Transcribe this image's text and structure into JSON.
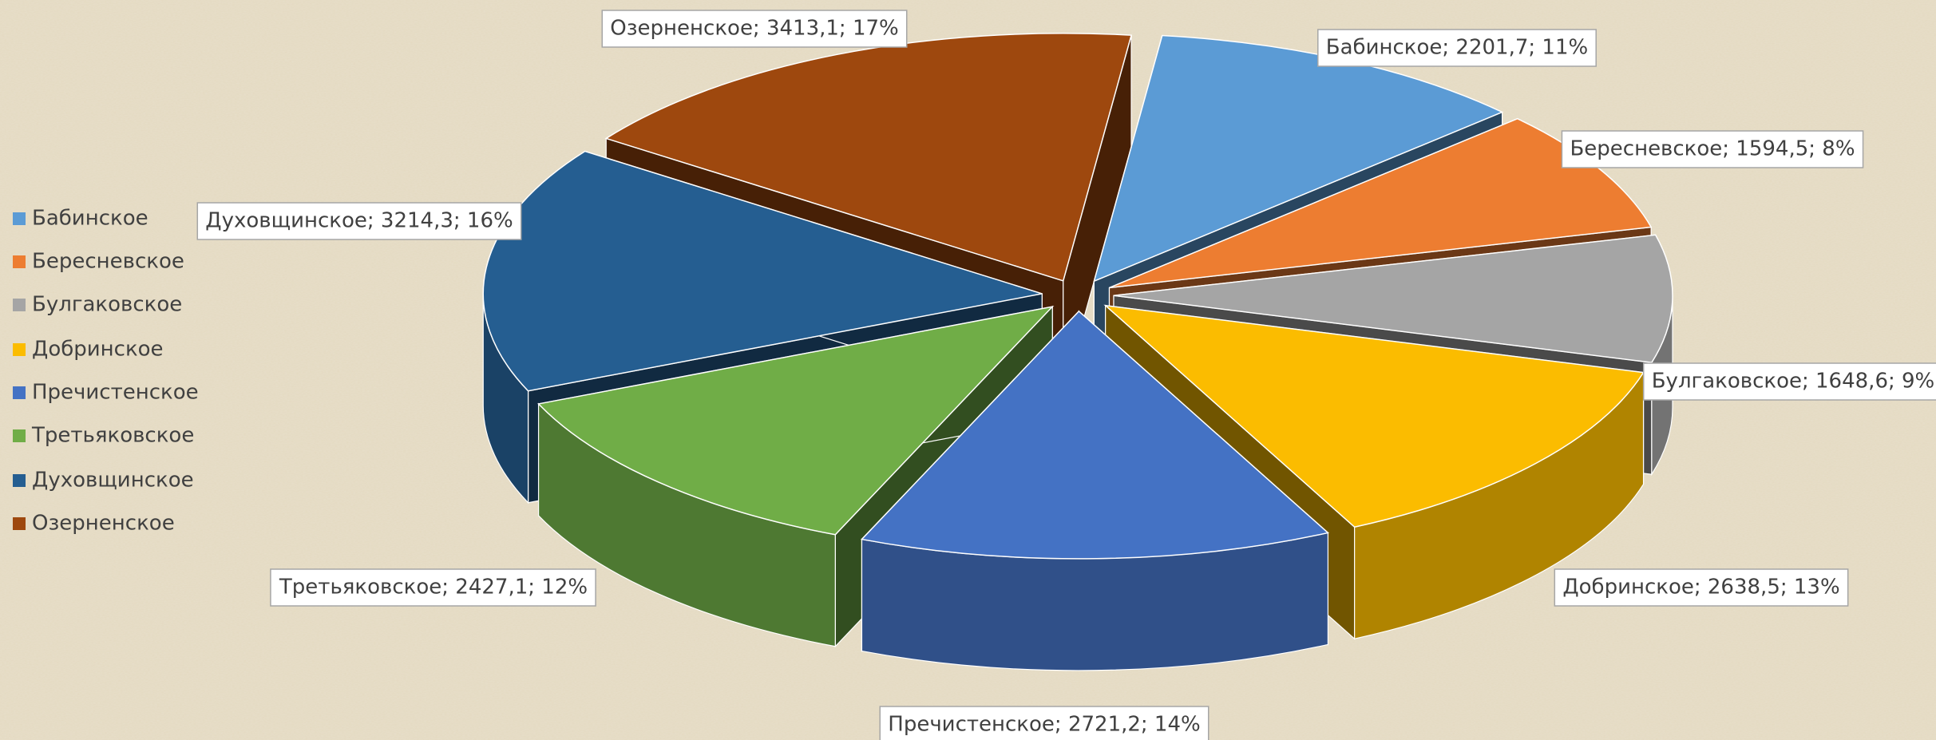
{
  "chart_data": {
    "type": "pie3d",
    "categories": [
      "Бабинское",
      "Бересневское",
      "Булгаковское",
      "Добринское",
      "Пречистенское",
      "Третьяковское",
      "Духовщинское",
      "Озерненское"
    ],
    "values": [
      2201.7,
      1594.5,
      1648.6,
      2638.5,
      2721.2,
      2427.1,
      3214.3,
      3413.1
    ],
    "value_labels": [
      "Бабинское; 2201,7; 11%",
      "Бересневское; 1594,5; 8%",
      "Булгаковское; 1648,6; 9%",
      "Добринское; 2638,5; 13%",
      "Пречистенское; 2721,2; 14%",
      "Третьяковское; 2427,1; 12%",
      "Духовщинское; 3214,3; 16%",
      "Озерненское; 3413,1; 17%"
    ],
    "colors": [
      "#5b9bd5",
      "#ed7d31",
      "#a5a5a5",
      "#fbbc00",
      "#4472c4",
      "#70ad47",
      "#255e91",
      "#9e480e"
    ],
    "legend": "left"
  }
}
